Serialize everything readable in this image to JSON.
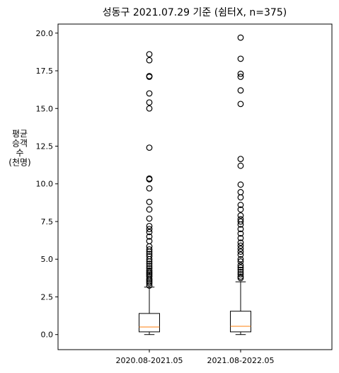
{
  "chart_data": {
    "type": "box",
    "title": "성동구 2021.07.29 기준 (쉼터X, n=375)",
    "ylabel_lines": [
      "평균",
      "승객",
      "수",
      "(천명)"
    ],
    "xlabel": "",
    "ylim": [
      -1.0,
      20.6
    ],
    "y_ticks": [
      0.0,
      2.5,
      5.0,
      7.5,
      10.0,
      12.5,
      15.0,
      17.5,
      20.0
    ],
    "y_tick_labels": [
      "0.0",
      "2.5",
      "5.0",
      "7.5",
      "10.0",
      "12.5",
      "15.0",
      "17.5",
      "20.0"
    ],
    "categories": [
      "2020.08-2021.05",
      "2021.08-2022.05"
    ],
    "boxes": [
      {
        "label": "2020.08-2021.05",
        "whisker_low": 0.0,
        "q1": 0.18,
        "median": 0.5,
        "q3": 1.4,
        "whisker_high": 3.15,
        "outliers": [
          3.25,
          3.4,
          3.5,
          3.6,
          3.7,
          3.85,
          3.95,
          4.05,
          4.15,
          4.25,
          4.4,
          4.55,
          4.7,
          4.85,
          5.0,
          5.2,
          5.35,
          5.5,
          5.65,
          5.85,
          6.2,
          6.5,
          6.8,
          7.0,
          7.2,
          7.7,
          8.3,
          8.8,
          9.7,
          10.3,
          10.35,
          12.4,
          15.0,
          15.4,
          16.0,
          17.1,
          17.15,
          18.2,
          18.6
        ]
      },
      {
        "label": "2021.08-2022.05",
        "whisker_low": 0.0,
        "q1": 0.18,
        "median": 0.55,
        "q3": 1.55,
        "whisker_high": 3.5,
        "outliers": [
          3.75,
          3.85,
          4.0,
          4.15,
          4.3,
          4.45,
          4.6,
          4.85,
          5.0,
          5.3,
          5.5,
          5.7,
          5.9,
          6.1,
          6.4,
          6.7,
          7.0,
          7.3,
          7.5,
          7.65,
          7.9,
          8.3,
          8.6,
          9.1,
          9.45,
          9.95,
          11.2,
          11.65,
          15.3,
          16.2,
          17.1,
          17.3,
          18.3,
          19.7
        ]
      }
    ],
    "colors": {
      "box": "#000000",
      "median": "#ff7f0e",
      "outlier": "#000000"
    },
    "grid": false,
    "legend": "none"
  }
}
